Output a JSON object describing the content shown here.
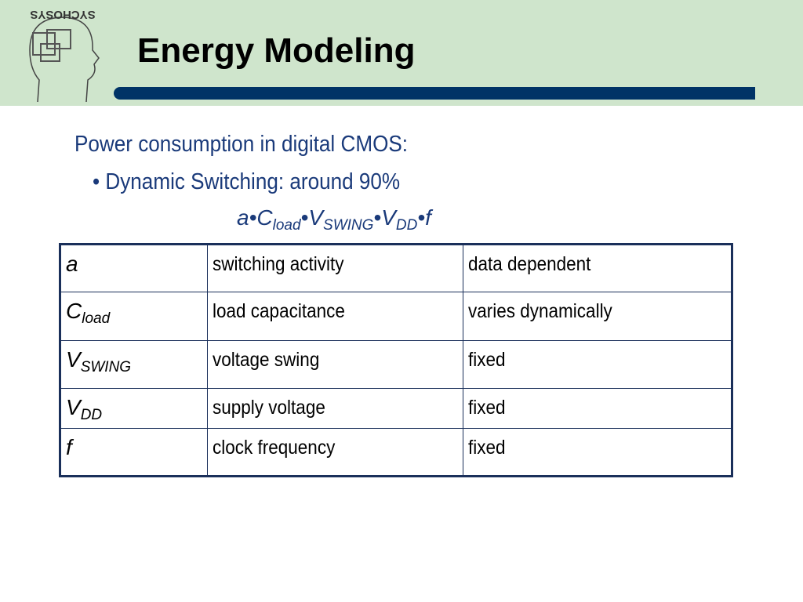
{
  "logo": {
    "text": "SYCHOSYS"
  },
  "header": {
    "title": "Energy Modeling"
  },
  "body": {
    "intro": "Power consumption in digital CMOS:",
    "bullet": "Dynamic Switching: around 90%",
    "formula": [
      {
        "text": "a•C"
      },
      {
        "sub": "load"
      },
      {
        "text": "•V"
      },
      {
        "sub": "SWING"
      },
      {
        "text": "•V"
      },
      {
        "sub": "DD"
      },
      {
        "text": "•f"
      }
    ]
  },
  "table": {
    "rows": [
      [
        {
          "base": "a"
        },
        "switching activity",
        "data dependent"
      ],
      [
        {
          "base": "C",
          "sub": "load"
        },
        "load capacitance",
        "varies dynamically"
      ],
      [
        {
          "base": "V",
          "sub": "SWING"
        },
        "voltage swing",
        "fixed"
      ],
      [
        {
          "base": "V",
          "sub": "DD"
        },
        "supply voltage",
        "fixed"
      ],
      [
        {
          "base": "f"
        },
        "clock frequency",
        "fixed"
      ]
    ]
  }
}
